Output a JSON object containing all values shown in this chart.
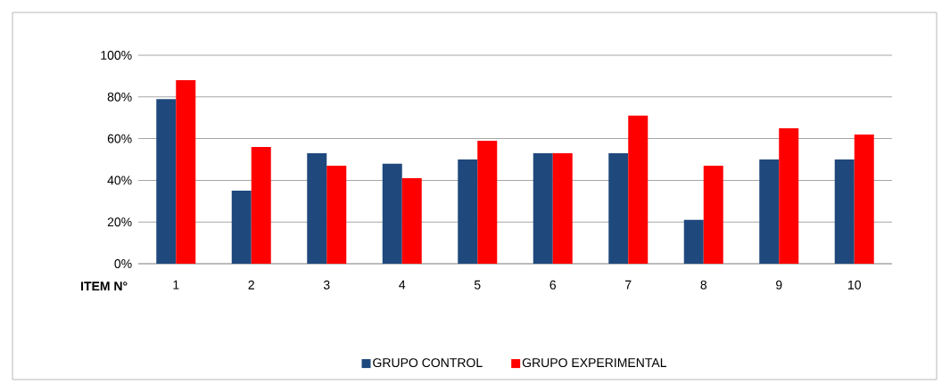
{
  "chart_data": {
    "type": "bar",
    "xlabel": "ITEM N°",
    "categories": [
      "1",
      "2",
      "3",
      "4",
      "5",
      "6",
      "7",
      "8",
      "9",
      "10"
    ],
    "series": [
      {
        "name": "GRUPO CONTROL",
        "color": "#1f497d",
        "values": [
          79,
          35,
          53,
          48,
          50,
          53,
          53,
          21,
          50,
          50
        ]
      },
      {
        "name": "GRUPO EXPERIMENTAL",
        "color": "#ff0000",
        "values": [
          88,
          56,
          47,
          41,
          59,
          53,
          71,
          47,
          65,
          62
        ]
      }
    ],
    "ylim": [
      0,
      100
    ],
    "yticks": [
      {
        "value": 0,
        "label": "0%"
      },
      {
        "value": 20,
        "label": "20%"
      },
      {
        "value": 40,
        "label": "40%"
      },
      {
        "value": 60,
        "label": "60%"
      },
      {
        "value": 80,
        "label": "80%"
      },
      {
        "value": 100,
        "label": "100%"
      }
    ],
    "grid": "y",
    "legend": "bottom"
  }
}
